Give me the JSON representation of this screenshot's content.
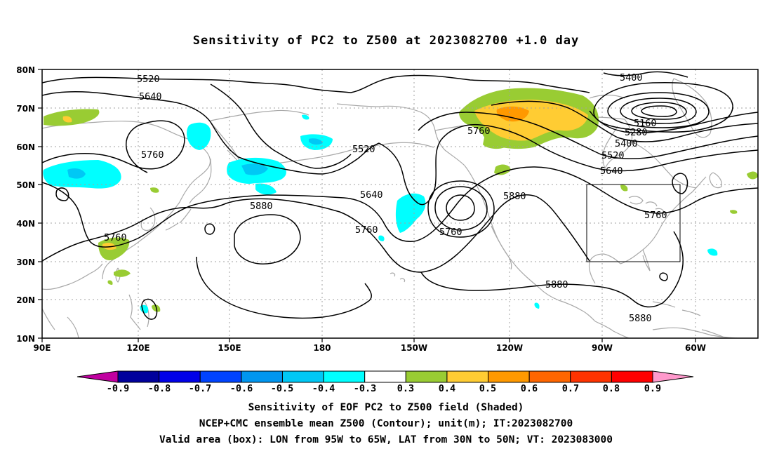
{
  "title": "Sensitivity of PC2 to Z500 at 2023082700 +1.0 day",
  "lat_ticks": [
    "80N",
    "70N",
    "60N",
    "50N",
    "40N",
    "30N",
    "20N",
    "10N"
  ],
  "lon_ticks": [
    "90E",
    "120E",
    "150E",
    "180",
    "150W",
    "120W",
    "90W",
    "60W"
  ],
  "contour_labels": {
    "c5520a": "5520",
    "c5640a": "5640",
    "c5760a": "5760",
    "c5400": "5400",
    "c5160": "5160",
    "c5280": "5280",
    "c5400b": "5400",
    "c5520b": "5520",
    "c5640b": "5640",
    "c5760b": "5760",
    "c5520c": "5520",
    "c5640c": "5640",
    "c5760c": "5760",
    "c5760d": "5760",
    "c5880a": "5880",
    "c5880b": "5880",
    "c5760e": "5760",
    "c5880c": "5880",
    "c5880d": "5880",
    "c5760f": "5760"
  },
  "colorbar": {
    "labels": [
      "-0.9",
      "-0.8",
      "-0.7",
      "-0.6",
      "-0.5",
      "-0.4",
      "-0.3",
      "0.3",
      "0.4",
      "0.5",
      "0.6",
      "0.7",
      "0.8",
      "0.9"
    ],
    "colors": [
      "#00009c",
      "#0000e8",
      "#0043ff",
      "#0096f0",
      "#00c8f5",
      "#00ffff",
      "#ffffff",
      "#99cc33",
      "#ffcc33",
      "#ff9900",
      "#ff6600",
      "#ff3300",
      "#ff0000"
    ],
    "low_end_color": "#c000a0",
    "high_end_color": "#ff99cc"
  },
  "valid_box": {
    "lon_min": "95W",
    "lon_max": "65W",
    "lat_min": "30N",
    "lat_max": "50N"
  },
  "captions": {
    "line1": "Sensitivity of EOF PC2 to Z500 field (Shaded)",
    "line2": "NCEP+CMC ensemble mean Z500 (Contour); unit(m); IT:2023082700",
    "line3": "Valid area (box): LON from 95W to 65W, LAT from 30N to 50N; VT: 2023083000"
  }
}
